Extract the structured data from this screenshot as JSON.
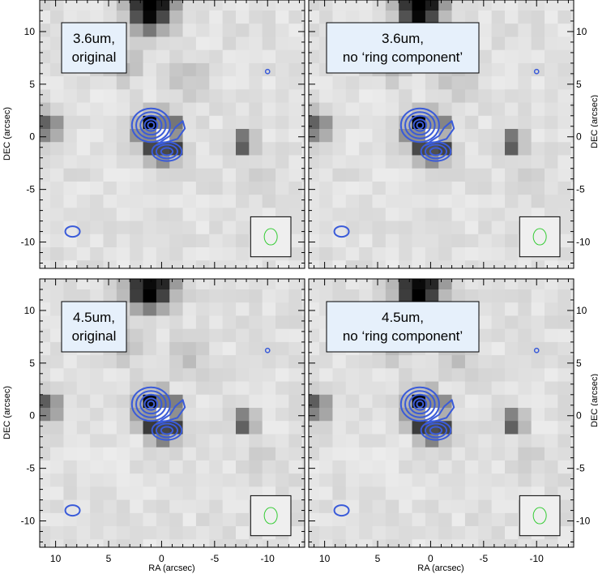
{
  "panels": [
    {
      "label_line1": "3.6um,",
      "label_line2": "original"
    },
    {
      "label_line1": "3.6um,",
      "label_line2": "no ‘ring component’"
    },
    {
      "label_line1": "4.5um,",
      "label_line2": "original"
    },
    {
      "label_line1": "4.5um,",
      "label_line2": "no ‘ring component’"
    }
  ],
  "axes": {
    "xlabel": "RA (arcsec)",
    "ylabel": "DEC (arcsec)",
    "x_ticks": [
      "10",
      "5",
      "0",
      "-5",
      "-10"
    ],
    "y_ticks": [
      "10",
      "5",
      "0",
      "-5",
      "-10"
    ]
  },
  "colors": {
    "contour": "#3a5bd9",
    "beam": "#33cc33",
    "label_box": "#e6f0fb"
  },
  "chart_data": {
    "type": "heatmap",
    "xlabel": "RA (arcsec)",
    "ylabel": "DEC (arcsec)",
    "xlim": [
      11.5,
      -13.5
    ],
    "ylim": [
      -12.5,
      13
    ],
    "x_ticks": [
      10,
      5,
      0,
      -5,
      -10
    ],
    "y_ticks": [
      10,
      5,
      0,
      -5,
      -10
    ]
  }
}
